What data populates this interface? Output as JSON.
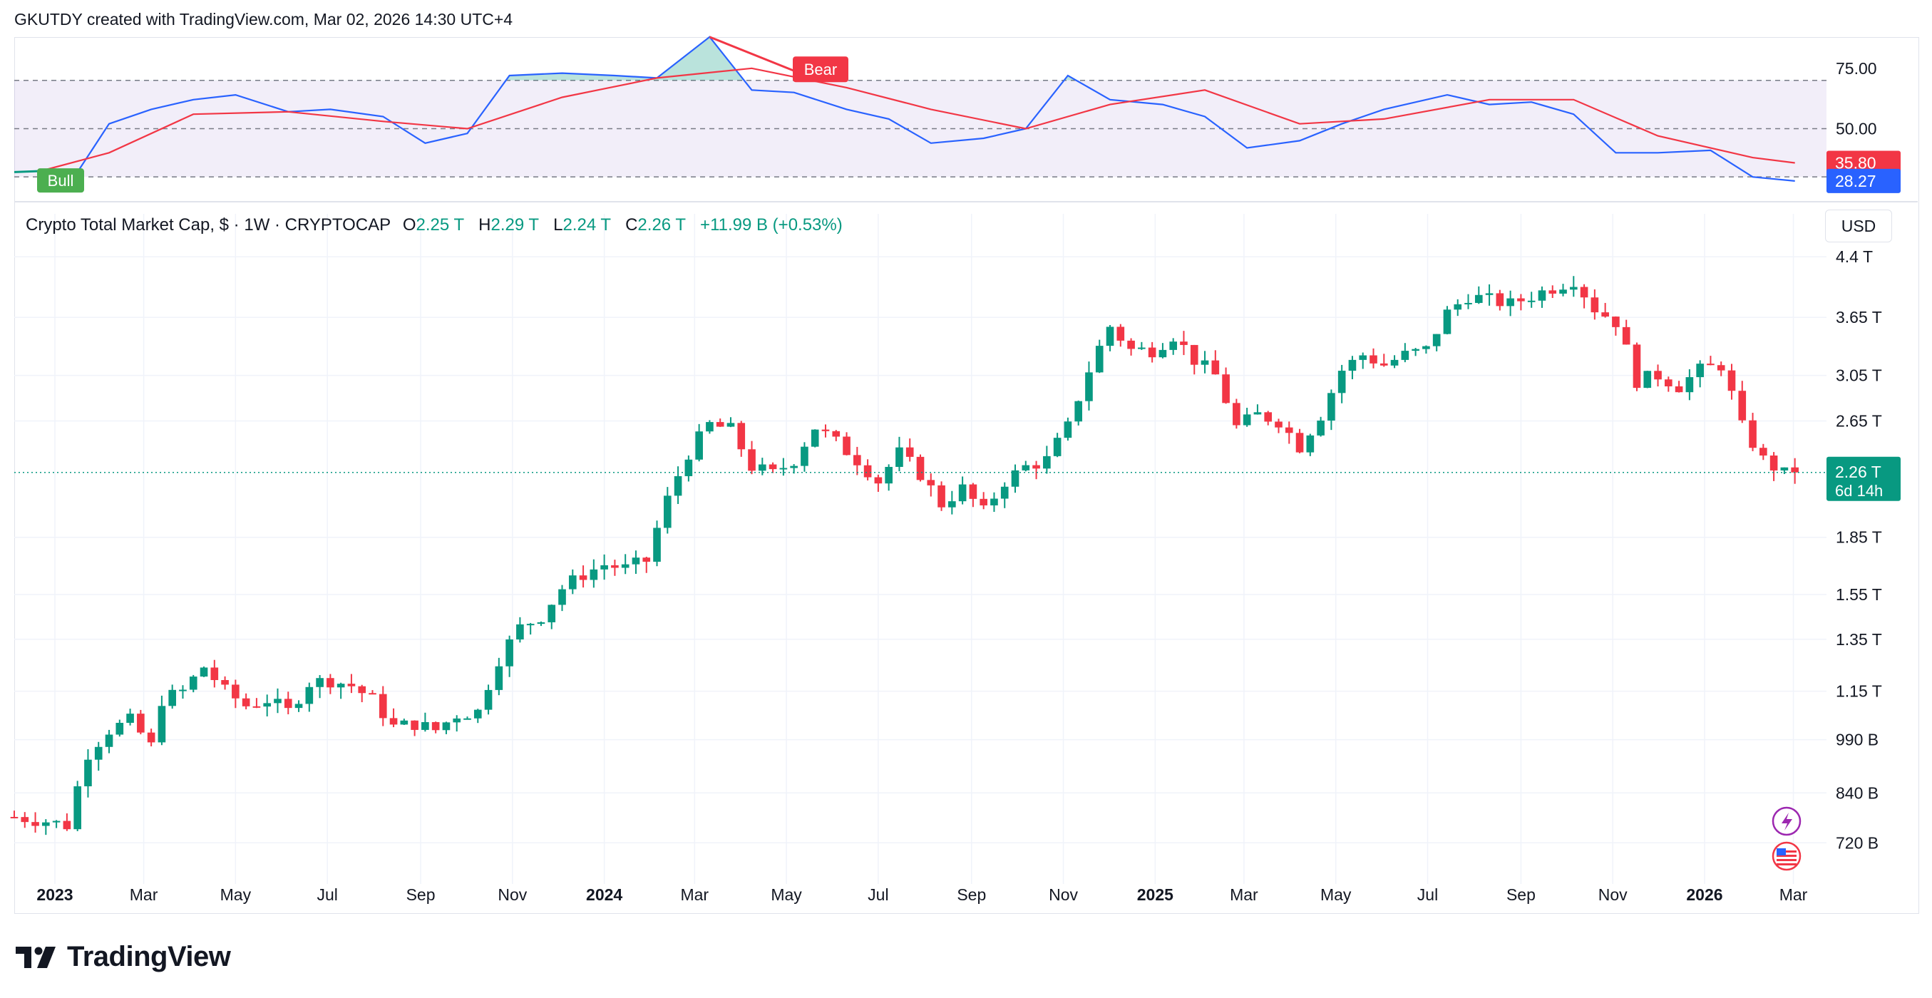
{
  "attribution": "GKUTDY created with TradingView.com, Mar 02, 2026 14:30 UTC+4",
  "legend": {
    "title": "Crypto Total Market Cap, $ · 1W · CRYPTOCAP",
    "o_label": "O",
    "o_value": "2.25 T",
    "h_label": "H",
    "h_value": "2.29 T",
    "l_label": "L",
    "l_value": "2.24 T",
    "c_label": "C",
    "c_value": "2.26 T",
    "change": "+11.99 B (+0.53%)"
  },
  "currency_button": "USD",
  "brand": "TradingView",
  "colors": {
    "up": "#089981",
    "down": "#f23645",
    "rsi_line": "#2962ff",
    "rsi_ma": "#f23645",
    "band_fill": "#7e57c2"
  },
  "chart_data": [
    {
      "type": "line",
      "name": "RSI panel",
      "y_ticks": [
        "75.00",
        "50.00"
      ],
      "levels": [
        70,
        50,
        30
      ],
      "ylim": [
        20,
        85
      ],
      "current_rsi": "28.27",
      "current_ma": "35.80",
      "badges": {
        "bull": "Bull",
        "bear": "Bear"
      },
      "series": [
        {
          "name": "RSI",
          "color": "#2962ff",
          "x": [
            "2022-12-26",
            "2023-01-16",
            "2023-02-06",
            "2023-03-06",
            "2023-04-03",
            "2023-05-01",
            "2023-06-05",
            "2023-07-03",
            "2023-08-07",
            "2023-09-04",
            "2023-10-02",
            "2023-10-30",
            "2023-12-04",
            "2024-01-08",
            "2024-02-05",
            "2024-03-11",
            "2024-04-08",
            "2024-05-06",
            "2024-06-10",
            "2024-07-08",
            "2024-08-05",
            "2024-09-09",
            "2024-10-07",
            "2024-11-04",
            "2024-12-02",
            "2025-01-06",
            "2025-02-03",
            "2025-03-03",
            "2025-04-07",
            "2025-05-05",
            "2025-06-02",
            "2025-07-14",
            "2025-08-11",
            "2025-09-08",
            "2025-10-06",
            "2025-11-03",
            "2025-12-01",
            "2026-01-05",
            "2026-02-02",
            "2026-03-02"
          ],
          "y": [
            30,
            32,
            52,
            58,
            62,
            64,
            57,
            58,
            55,
            44,
            48,
            72,
            73,
            72,
            71,
            88,
            66,
            65,
            58,
            54,
            44,
            46,
            50,
            72,
            62,
            60,
            55,
            42,
            45,
            52,
            58,
            64,
            60,
            61,
            56,
            40,
            40,
            41,
            30,
            28.3
          ]
        },
        {
          "name": "RSI MA",
          "color": "#f23645",
          "x": [
            "2022-12-26",
            "2023-02-06",
            "2023-04-03",
            "2023-06-05",
            "2023-08-07",
            "2023-10-02",
            "2023-12-04",
            "2024-02-05",
            "2024-04-08",
            "2024-06-10",
            "2024-08-05",
            "2024-10-07",
            "2024-12-02",
            "2025-02-03",
            "2025-04-07",
            "2025-06-02",
            "2025-08-11",
            "2025-10-06",
            "2025-12-01",
            "2026-02-02",
            "2026-03-02"
          ],
          "y": [
            33,
            40,
            56,
            57,
            53,
            50,
            63,
            71,
            75,
            67,
            58,
            50,
            60,
            66,
            52,
            54,
            62,
            62,
            47,
            38,
            35.8
          ]
        }
      ]
    },
    {
      "type": "candlestick",
      "name": "Crypto Total Market Cap, $ · 1W · CRYPTOCAP",
      "scale": "log",
      "y_ticks": [
        {
          "label": "4.4 T",
          "value": 4.4
        },
        {
          "label": "3.65 T",
          "value": 3.65
        },
        {
          "label": "3.05 T",
          "value": 3.05
        },
        {
          "label": "2.65 T",
          "value": 2.65
        },
        {
          "label": "1.85 T",
          "value": 1.85
        },
        {
          "label": "1.55 T",
          "value": 1.55
        },
        {
          "label": "1.35 T",
          "value": 1.35
        },
        {
          "label": "1.15 T",
          "value": 1.15
        },
        {
          "label": "990 B",
          "value": 0.99
        },
        {
          "label": "840 B",
          "value": 0.84
        },
        {
          "label": "720 B",
          "value": 0.72
        }
      ],
      "x_ticks": [
        {
          "label": "2023",
          "date": "2023-01-01",
          "bold": true
        },
        {
          "label": "Mar",
          "date": "2023-03-01"
        },
        {
          "label": "May",
          "date": "2023-05-01"
        },
        {
          "label": "Jul",
          "date": "2023-07-01"
        },
        {
          "label": "Sep",
          "date": "2023-09-01"
        },
        {
          "label": "Nov",
          "date": "2023-11-01"
        },
        {
          "label": "2024",
          "date": "2024-01-01",
          "bold": true
        },
        {
          "label": "Mar",
          "date": "2024-03-01"
        },
        {
          "label": "May",
          "date": "2024-05-01"
        },
        {
          "label": "Jul",
          "date": "2024-07-01"
        },
        {
          "label": "Sep",
          "date": "2024-09-01"
        },
        {
          "label": "Nov",
          "date": "2024-11-01"
        },
        {
          "label": "2025",
          "date": "2025-01-01",
          "bold": true
        },
        {
          "label": "Mar",
          "date": "2025-03-01"
        },
        {
          "label": "May",
          "date": "2025-05-01"
        },
        {
          "label": "Jul",
          "date": "2025-07-01"
        },
        {
          "label": "Sep",
          "date": "2025-09-01"
        },
        {
          "label": "Nov",
          "date": "2025-11-01"
        },
        {
          "label": "2026",
          "date": "2026-01-01",
          "bold": true
        },
        {
          "label": "Mar",
          "date": "2026-03-01"
        }
      ],
      "xlim": [
        "2022-12-05",
        "2026-03-23"
      ],
      "last_price": "2.26 T",
      "countdown": "6d 14h",
      "close_path": {
        "x": [
          "2022-12-05",
          "2022-12-26",
          "2023-01-09",
          "2023-01-23",
          "2023-02-06",
          "2023-02-20",
          "2023-03-06",
          "2023-03-13",
          "2023-03-27",
          "2023-04-10",
          "2023-04-24",
          "2023-05-08",
          "2023-05-22",
          "2023-06-05",
          "2023-06-19",
          "2023-07-03",
          "2023-07-17",
          "2023-07-31",
          "2023-08-14",
          "2023-08-28",
          "2023-09-11",
          "2023-09-25",
          "2023-10-09",
          "2023-10-23",
          "2023-11-06",
          "2023-11-20",
          "2023-12-04",
          "2023-12-18",
          "2024-01-01",
          "2024-01-15",
          "2024-01-29",
          "2024-02-12",
          "2024-02-26",
          "2024-03-11",
          "2024-03-25",
          "2024-04-08",
          "2024-04-22",
          "2024-05-06",
          "2024-05-20",
          "2024-06-03",
          "2024-06-17",
          "2024-07-01",
          "2024-07-15",
          "2024-07-29",
          "2024-08-12",
          "2024-08-26",
          "2024-09-09",
          "2024-09-23",
          "2024-10-07",
          "2024-10-21",
          "2024-11-04",
          "2024-11-18",
          "2024-12-02",
          "2024-12-16",
          "2024-12-30",
          "2025-01-13",
          "2025-01-27",
          "2025-02-10",
          "2025-02-24",
          "2025-03-10",
          "2025-03-24",
          "2025-04-07",
          "2025-04-21",
          "2025-05-05",
          "2025-05-19",
          "2025-06-02",
          "2025-06-16",
          "2025-06-30",
          "2025-07-14",
          "2025-07-28",
          "2025-08-11",
          "2025-08-25",
          "2025-09-08",
          "2025-09-22",
          "2025-10-06",
          "2025-10-20",
          "2025-11-03",
          "2025-11-17",
          "2025-12-01",
          "2025-12-15",
          "2025-12-29",
          "2026-01-12",
          "2026-01-26",
          "2026-02-09",
          "2026-02-23",
          "2026-03-02"
        ],
        "y": [
          0.78,
          0.77,
          0.76,
          0.95,
          1.02,
          1.05,
          0.97,
          1.12,
          1.15,
          1.24,
          1.15,
          1.1,
          1.12,
          1.08,
          1.18,
          1.19,
          1.17,
          1.12,
          1.03,
          1.04,
          1.02,
          1.07,
          1.08,
          1.27,
          1.4,
          1.45,
          1.58,
          1.65,
          1.7,
          1.68,
          1.72,
          2.08,
          2.4,
          2.62,
          2.58,
          2.3,
          2.25,
          2.35,
          2.6,
          2.48,
          2.35,
          2.2,
          2.4,
          2.25,
          2.05,
          2.15,
          2.0,
          2.2,
          2.3,
          2.35,
          2.6,
          3.1,
          3.55,
          3.3,
          3.3,
          3.45,
          3.2,
          3.05,
          2.6,
          2.7,
          2.65,
          2.45,
          2.7,
          3.1,
          3.25,
          3.15,
          3.25,
          3.3,
          3.7,
          3.9,
          3.85,
          3.8,
          3.9,
          4.0,
          4.1,
          3.75,
          3.6,
          3.0,
          3.05,
          2.95,
          3.1,
          3.15,
          2.6,
          2.35,
          2.25,
          2.26
        ]
      }
    }
  ]
}
